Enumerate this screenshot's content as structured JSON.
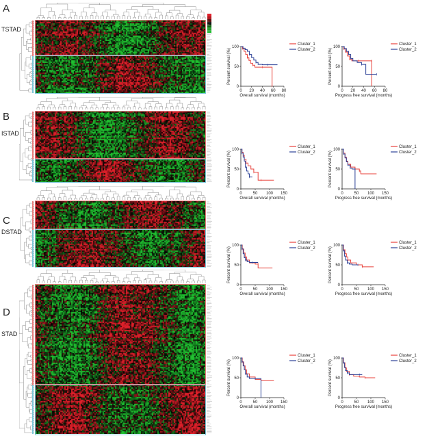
{
  "panels": [
    {
      "letter": "A",
      "subtype": "TSTAD",
      "os": {
        "xlabel": "Overall survival (months)",
        "ylabel": "Percent survival (%)",
        "xticks": [
          "0",
          "20",
          "40",
          "60",
          "80"
        ],
        "yticks": [
          "0",
          "50",
          "100"
        ],
        "legend": [
          "Cluster_1",
          "Cluster_2"
        ]
      },
      "pfs": {
        "xlabel": "Progress free survival (months)",
        "ylabel": "Percent survival (%)",
        "xticks": [
          "0",
          "20",
          "40",
          "60",
          "80"
        ],
        "yticks": [
          "0",
          "50",
          "100"
        ],
        "legend": [
          "Cluster_1",
          "Cluster_2"
        ]
      }
    },
    {
      "letter": "B",
      "subtype": "ISTAD",
      "os": {
        "xlabel": "Overall survival (months)",
        "ylabel": "Percent survival (%)",
        "xticks": [
          "0",
          "50",
          "100",
          "150"
        ],
        "yticks": [
          "0",
          "50",
          "100"
        ],
        "legend": [
          "Cluster_1",
          "Cluster_2"
        ]
      },
      "pfs": {
        "xlabel": "Progress free survival (months)",
        "ylabel": "Percent survival (%)",
        "xticks": [
          "0",
          "50",
          "100",
          "150"
        ],
        "yticks": [
          "0",
          "50",
          "100"
        ],
        "legend": [
          "Cluster_1",
          "Cluster_2"
        ]
      }
    },
    {
      "letter": "C",
      "subtype": "DSTAD",
      "os": {
        "xlabel": "Overall survival (months)",
        "ylabel": "Percent survival (%)",
        "xticks": [
          "0",
          "50",
          "100",
          "150"
        ],
        "yticks": [
          "0",
          "50",
          "100"
        ],
        "legend": [
          "Cluster_1",
          "Cluster_2"
        ]
      },
      "pfs": {
        "xlabel": "Progress free survival (months)",
        "ylabel": "Percent survival (%)",
        "xticks": [
          "0",
          "50",
          "100",
          "150"
        ],
        "yticks": [
          "0",
          "50",
          "100"
        ],
        "legend": [
          "Cluster_1",
          "Cluster_2"
        ]
      }
    },
    {
      "letter": "D",
      "subtype": "STAD",
      "os": {
        "xlabel": "Overall survival (months)",
        "ylabel": "Percent survival (%)",
        "xticks": [
          "0",
          "50",
          "100",
          "150"
        ],
        "yticks": [
          "0",
          "50",
          "100"
        ],
        "legend": [
          "Cluster_1",
          "Cluster_2"
        ]
      },
      "pfs": {
        "xlabel": "Progress free survival (months)",
        "ylabel": "Percent survival (%)",
        "xticks": [
          "0",
          "50",
          "100",
          "150"
        ],
        "yticks": [
          "0",
          "50",
          "100"
        ],
        "legend": [
          "Cluster_1",
          "Cluster_2"
        ]
      }
    }
  ],
  "colors": {
    "cluster_1": "#e8403a",
    "cluster_2": "#2a3f95",
    "heat_high": "#e0202a",
    "heat_low": "#20c030",
    "box_1": "#e87c7c",
    "box_2": "#7ac6d8"
  },
  "chart_data": [
    {
      "type": "line",
      "panel": "A",
      "plot": "overall survival",
      "xlim": [
        0,
        80
      ],
      "ylim": [
        0,
        100
      ],
      "series": [
        {
          "name": "Cluster_1",
          "x": [
            0,
            3,
            6,
            9,
            12,
            15,
            18,
            22,
            26,
            30,
            40,
            50,
            58,
            58
          ],
          "y": [
            100,
            95,
            88,
            80,
            72,
            65,
            58,
            53,
            48,
            48,
            48,
            48,
            48,
            0
          ]
        },
        {
          "name": "Cluster_2",
          "x": [
            0,
            4,
            8,
            12,
            16,
            20,
            24,
            28,
            32,
            40,
            50,
            68
          ],
          "y": [
            100,
            96,
            92,
            88,
            80,
            72,
            66,
            60,
            55,
            54,
            54,
            54
          ]
        }
      ]
    },
    {
      "type": "line",
      "panel": "A",
      "plot": "progress free survival",
      "xlim": [
        0,
        80
      ],
      "ylim": [
        0,
        100
      ],
      "series": [
        {
          "name": "Cluster_1",
          "x": [
            0,
            3,
            6,
            10,
            14,
            18,
            22,
            30,
            40,
            50,
            55,
            55
          ],
          "y": [
            100,
            94,
            86,
            76,
            68,
            64,
            64,
            64,
            64,
            64,
            64,
            0
          ]
        },
        {
          "name": "Cluster_2",
          "x": [
            0,
            4,
            8,
            12,
            16,
            20,
            28,
            36,
            44,
            44,
            64
          ],
          "y": [
            100,
            95,
            88,
            80,
            70,
            64,
            60,
            55,
            50,
            30,
            30
          ]
        }
      ]
    },
    {
      "type": "line",
      "panel": "B",
      "plot": "overall survival",
      "xlim": [
        0,
        150
      ],
      "ylim": [
        0,
        100
      ],
      "series": [
        {
          "name": "Cluster_1",
          "x": [
            0,
            4,
            8,
            12,
            18,
            25,
            35,
            45,
            60,
            60,
            70,
            115
          ],
          "y": [
            100,
            92,
            85,
            75,
            65,
            58,
            50,
            42,
            42,
            22,
            22,
            22
          ]
        },
        {
          "name": "Cluster_2",
          "x": [
            0,
            4,
            8,
            12,
            16,
            20,
            25,
            30,
            40
          ],
          "y": [
            100,
            90,
            80,
            70,
            55,
            45,
            38,
            30,
            30
          ]
        }
      ]
    },
    {
      "type": "line",
      "panel": "B",
      "plot": "progress free survival",
      "xlim": [
        0,
        150
      ],
      "ylim": [
        0,
        100
      ],
      "series": [
        {
          "name": "Cluster_1",
          "x": [
            0,
            5,
            10,
            15,
            20,
            30,
            45,
            60,
            65,
            120
          ],
          "y": [
            100,
            90,
            80,
            70,
            62,
            55,
            50,
            45,
            38,
            38
          ]
        },
        {
          "name": "Cluster_2",
          "x": [
            0,
            5,
            10,
            15,
            20,
            28,
            35,
            45,
            45
          ],
          "y": [
            100,
            88,
            78,
            68,
            60,
            52,
            50,
            50,
            0
          ]
        }
      ]
    },
    {
      "type": "line",
      "panel": "C",
      "plot": "overall survival",
      "xlim": [
        0,
        150
      ],
      "ylim": [
        0,
        100
      ],
      "series": [
        {
          "name": "Cluster_1",
          "x": [
            0,
            5,
            10,
            15,
            20,
            30,
            50,
            60,
            60,
            110
          ],
          "y": [
            100,
            90,
            80,
            70,
            62,
            55,
            52,
            52,
            42,
            42
          ]
        },
        {
          "name": "Cluster_2",
          "x": [
            0,
            4,
            8,
            12,
            16,
            22,
            30,
            40,
            60
          ],
          "y": [
            100,
            90,
            78,
            68,
            62,
            58,
            56,
            56,
            56
          ]
        }
      ]
    },
    {
      "type": "line",
      "panel": "C",
      "plot": "progress free survival",
      "xlim": [
        0,
        150
      ],
      "ylim": [
        0,
        100
      ],
      "series": [
        {
          "name": "Cluster_1",
          "x": [
            0,
            5,
            10,
            15,
            20,
            30,
            50,
            70,
            110
          ],
          "y": [
            100,
            88,
            78,
            70,
            62,
            55,
            50,
            45,
            45
          ]
        },
        {
          "name": "Cluster_2",
          "x": [
            0,
            4,
            8,
            12,
            18,
            25,
            35,
            55
          ],
          "y": [
            100,
            86,
            72,
            62,
            55,
            52,
            50,
            50
          ]
        }
      ]
    },
    {
      "type": "line",
      "panel": "D",
      "plot": "overall survival",
      "xlim": [
        0,
        150
      ],
      "ylim": [
        0,
        100
      ],
      "series": [
        {
          "name": "Cluster_1",
          "x": [
            0,
            5,
            10,
            15,
            20,
            30,
            50,
            70,
            115
          ],
          "y": [
            100,
            90,
            80,
            70,
            60,
            52,
            46,
            44,
            44
          ]
        },
        {
          "name": "Cluster_2",
          "x": [
            0,
            4,
            8,
            12,
            16,
            22,
            30,
            50,
            70,
            70
          ],
          "y": [
            100,
            90,
            80,
            70,
            60,
            52,
            48,
            48,
            48,
            0
          ]
        }
      ]
    },
    {
      "type": "line",
      "panel": "D",
      "plot": "progress free survival",
      "xlim": [
        0,
        150
      ],
      "ylim": [
        0,
        100
      ],
      "series": [
        {
          "name": "Cluster_1",
          "x": [
            0,
            5,
            10,
            15,
            25,
            40,
            60,
            80,
            100,
            115
          ],
          "y": [
            100,
            88,
            75,
            66,
            58,
            54,
            52,
            50,
            50,
            50
          ]
        },
        {
          "name": "Cluster_2",
          "x": [
            0,
            4,
            8,
            12,
            18,
            25,
            40,
            60,
            70
          ],
          "y": [
            100,
            88,
            76,
            68,
            62,
            58,
            58,
            58,
            58
          ]
        }
      ]
    }
  ]
}
